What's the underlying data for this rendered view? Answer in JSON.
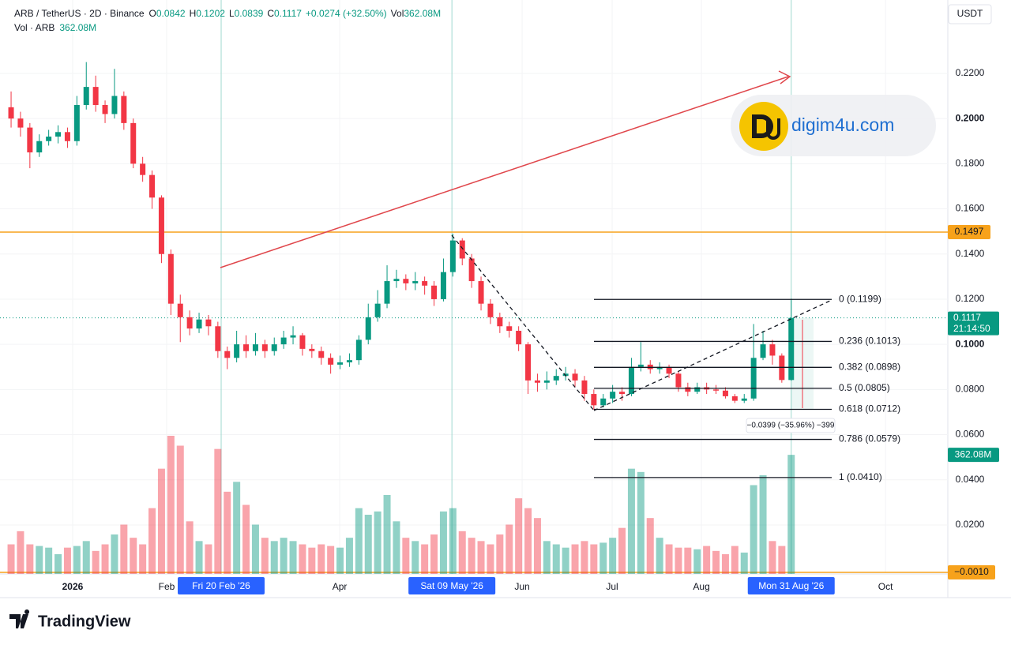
{
  "chart_data": {
    "type": "candlestick",
    "header": {
      "symbol": "ARB / TetherUS · 2D · Binance",
      "ohlc": [
        {
          "key": "O",
          "value": "0.0842"
        },
        {
          "key": "H",
          "value": "0.1202"
        },
        {
          "key": "L",
          "value": "0.0839"
        },
        {
          "key": "C",
          "value": "0.1117"
        }
      ],
      "change": "+0.0274 (+32.50%)",
      "vol_key": "Vol",
      "vol_value": "362.08M"
    },
    "volume_legend": {
      "name": "Vol · ARB",
      "value": "362.08M"
    },
    "currency": "USDT",
    "up_color": "#089981",
    "down_color": "#f23645",
    "open": [
      0.205,
      0.2,
      0.196,
      0.185,
      0.19,
      0.192,
      0.194,
      0.19,
      0.206,
      0.214,
      0.206,
      0.202,
      0.21,
      0.198,
      0.18,
      0.175,
      0.165,
      0.14,
      0.118,
      0.112,
      0.107,
      0.111,
      0.108,
      0.097,
      0.094,
      0.1,
      0.097,
      0.1,
      0.097,
      0.1,
      0.103,
      0.104,
      0.098,
      0.097,
      0.094,
      0.091,
      0.092,
      0.093,
      0.102,
      0.112,
      0.118,
      0.128,
      0.129,
      0.127,
      0.128,
      0.126,
      0.12,
      0.132,
      0.146,
      0.138,
      0.128,
      0.118,
      0.112,
      0.108,
      0.106,
      0.1,
      0.084,
      0.083,
      0.084,
      0.086,
      0.087,
      0.084,
      0.078,
      0.073,
      0.076,
      0.079,
      0.078,
      0.09,
      0.091,
      0.089,
      0.09,
      0.087,
      0.081,
      0.079,
      0.081,
      0.08,
      0.0795,
      0.077,
      0.075,
      0.076,
      0.094,
      0.1,
      0.095,
      0.0842
    ],
    "high": [
      0.212,
      0.203,
      0.198,
      0.193,
      0.195,
      0.197,
      0.196,
      0.21,
      0.225,
      0.219,
      0.208,
      0.222,
      0.212,
      0.2,
      0.183,
      0.177,
      0.166,
      0.142,
      0.122,
      0.115,
      0.114,
      0.113,
      0.11,
      0.099,
      0.106,
      0.104,
      0.105,
      0.102,
      0.103,
      0.106,
      0.108,
      0.105,
      0.1,
      0.099,
      0.096,
      0.095,
      0.096,
      0.104,
      0.118,
      0.124,
      0.135,
      0.133,
      0.131,
      0.132,
      0.13,
      0.128,
      0.138,
      0.149,
      0.147,
      0.14,
      0.13,
      0.12,
      0.114,
      0.11,
      0.108,
      0.101,
      0.087,
      0.088,
      0.089,
      0.09,
      0.089,
      0.086,
      0.08,
      0.078,
      0.082,
      0.081,
      0.094,
      0.101,
      0.093,
      0.092,
      0.091,
      0.088,
      0.083,
      0.083,
      0.083,
      0.082,
      0.081,
      0.078,
      0.078,
      0.109,
      0.106,
      0.102,
      0.096,
      0.1202
    ],
    "low": [
      0.196,
      0.192,
      0.178,
      0.183,
      0.188,
      0.189,
      0.187,
      0.188,
      0.204,
      0.203,
      0.198,
      0.2,
      0.195,
      0.178,
      0.172,
      0.16,
      0.136,
      0.113,
      0.101,
      0.104,
      0.105,
      0.104,
      0.094,
      0.089,
      0.092,
      0.094,
      0.095,
      0.094,
      0.095,
      0.098,
      0.1,
      0.095,
      0.094,
      0.091,
      0.087,
      0.089,
      0.09,
      0.091,
      0.1,
      0.11,
      0.116,
      0.125,
      0.124,
      0.124,
      0.122,
      0.117,
      0.119,
      0.13,
      0.135,
      0.125,
      0.115,
      0.109,
      0.105,
      0.103,
      0.097,
      0.078,
      0.079,
      0.08,
      0.082,
      0.084,
      0.081,
      0.075,
      0.071,
      0.072,
      0.074,
      0.075,
      0.077,
      0.088,
      0.087,
      0.087,
      0.085,
      0.079,
      0.077,
      0.078,
      0.078,
      0.078,
      0.076,
      0.074,
      0.074,
      0.075,
      0.093,
      0.091,
      0.083,
      0.0839
    ],
    "close": [
      0.2,
      0.196,
      0.185,
      0.19,
      0.192,
      0.194,
      0.19,
      0.206,
      0.214,
      0.206,
      0.202,
      0.21,
      0.198,
      0.18,
      0.175,
      0.165,
      0.14,
      0.118,
      0.112,
      0.107,
      0.111,
      0.108,
      0.097,
      0.094,
      0.1,
      0.097,
      0.1,
      0.097,
      0.1,
      0.103,
      0.104,
      0.098,
      0.097,
      0.094,
      0.091,
      0.092,
      0.093,
      0.102,
      0.112,
      0.118,
      0.128,
      0.129,
      0.127,
      0.128,
      0.126,
      0.12,
      0.132,
      0.146,
      0.138,
      0.128,
      0.118,
      0.112,
      0.108,
      0.106,
      0.1,
      0.084,
      0.083,
      0.084,
      0.086,
      0.087,
      0.084,
      0.078,
      0.073,
      0.076,
      0.079,
      0.078,
      0.09,
      0.091,
      0.089,
      0.09,
      0.087,
      0.081,
      0.079,
      0.081,
      0.08,
      0.0795,
      0.077,
      0.075,
      0.076,
      0.094,
      0.1,
      0.095,
      0.0842,
      0.1117
    ],
    "volume": [
      90,
      130,
      90,
      85,
      80,
      60,
      80,
      85,
      100,
      70,
      90,
      120,
      150,
      110,
      90,
      200,
      320,
      420,
      390,
      160,
      100,
      90,
      380,
      250,
      280,
      210,
      150,
      110,
      100,
      110,
      100,
      90,
      80,
      90,
      85,
      80,
      110,
      200,
      180,
      190,
      240,
      160,
      110,
      100,
      90,
      120,
      190,
      200,
      130,
      110,
      100,
      90,
      120,
      150,
      230,
      200,
      170,
      100,
      90,
      80,
      90,
      100,
      90,
      95,
      110,
      140,
      320,
      310,
      170,
      110,
      90,
      80,
      80,
      75,
      85,
      70,
      60,
      85,
      65,
      270,
      300,
      100,
      85,
      362.08
    ],
    "volume_label": "362.08M",
    "volume_lim": [
      0,
      480
    ],
    "xlim": [
      -1.18,
      99.66
    ],
    "xticks": [
      {
        "value": 6.55,
        "label": "2026"
      },
      {
        "value": 16.55,
        "label": "Feb"
      },
      {
        "value": 34.96,
        "label": "Apr"
      },
      {
        "value": 54.37,
        "label": "Jun"
      },
      {
        "value": 63.95,
        "label": "Jul"
      },
      {
        "value": 73.45,
        "label": "Aug"
      },
      {
        "value": 93.03,
        "label": "Oct"
      }
    ],
    "cursor_dates": [
      {
        "value": 22.35,
        "label": "Fri 20 Feb '26"
      },
      {
        "value": 46.9,
        "label": "Sat 09 May '26"
      },
      {
        "value": 83,
        "label": "Mon 31 Aug '26"
      }
    ],
    "ylim": [
      -0.0017,
      0.2525
    ],
    "yticks": [
      {
        "value": 0.02,
        "label": "0.0200"
      },
      {
        "value": 0.04,
        "label": "0.0400"
      },
      {
        "value": 0.06,
        "label": "0.0600"
      },
      {
        "value": 0.08,
        "label": "0.0800"
      },
      {
        "value": 0.1,
        "label": "0.1000"
      },
      {
        "value": 0.12,
        "label": "0.1200"
      },
      {
        "value": 0.14,
        "label": "0.1400"
      },
      {
        "value": 0.16,
        "label": "0.1600"
      },
      {
        "value": 0.18,
        "label": "0.1800"
      },
      {
        "value": 0.2,
        "label": "0.2000"
      },
      {
        "value": 0.22,
        "label": "0.2200"
      }
    ],
    "last_price": {
      "value": 0.1117,
      "countdown": "21:14:50"
    },
    "resistance": {
      "value": 0.1497,
      "color": "#f7a21b"
    },
    "zero_line": {
      "value": -0.001,
      "label": "−0.0010"
    },
    "fib": [
      {
        "price": 0.1199,
        "label": "0 (0.1199)"
      },
      {
        "price": 0.1013,
        "label": "0.236 (0.1013)"
      },
      {
        "price": 0.0898,
        "label": "0.382 (0.0898)"
      },
      {
        "price": 0.0805,
        "label": "0.5 (0.0805)"
      },
      {
        "price": 0.0712,
        "label": "0.618 (0.0712)"
      },
      {
        "price": 0.0579,
        "label": "0.786 (0.0579)"
      },
      {
        "price": 0.041,
        "label": "1 (0.0410)"
      }
    ],
    "measure_label": "−0.0399 (−35.96%) −399",
    "watermark": "digim4u.com",
    "footer": "TradingView"
  }
}
